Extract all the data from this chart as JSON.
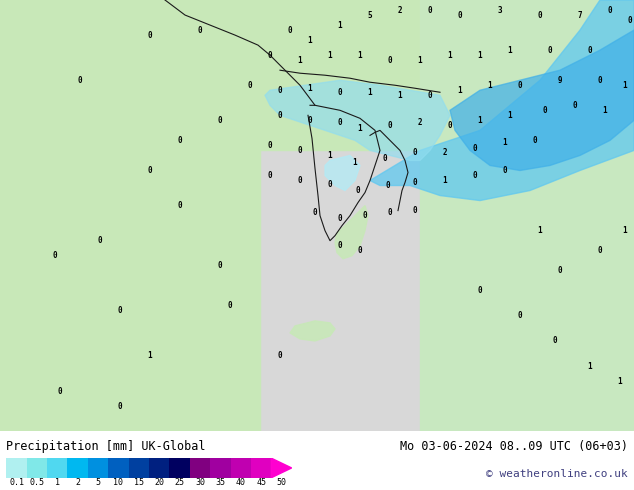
{
  "title": "Precipitation [mm] UK-Global",
  "datetime_label": "Mo 03-06-2024 08..09 UTC (06+03)",
  "copyright_label": "© weatheronline.co.uk",
  "colorbar_levels": [
    0.1,
    0.5,
    1,
    2,
    5,
    10,
    15,
    20,
    25,
    30,
    35,
    40,
    45,
    50
  ],
  "colorbar_colors": [
    "#b0f0f0",
    "#80e8e8",
    "#50d8f0",
    "#00b8f0",
    "#0090e0",
    "#0060c0",
    "#0040a0",
    "#002080",
    "#000060",
    "#800080",
    "#a000a0",
    "#c000b0",
    "#e000c0",
    "#ff00d0"
  ],
  "map_bg_color": "#c8e8c8",
  "sea_color": "#d0d0d0",
  "land_color": "#c8e8c8",
  "border_color": "#202020",
  "fig_bg_color": "#ffffff",
  "bottom_bar_color": "#f0f0f0",
  "figsize": [
    6.34,
    4.9
  ],
  "dpi": 100
}
